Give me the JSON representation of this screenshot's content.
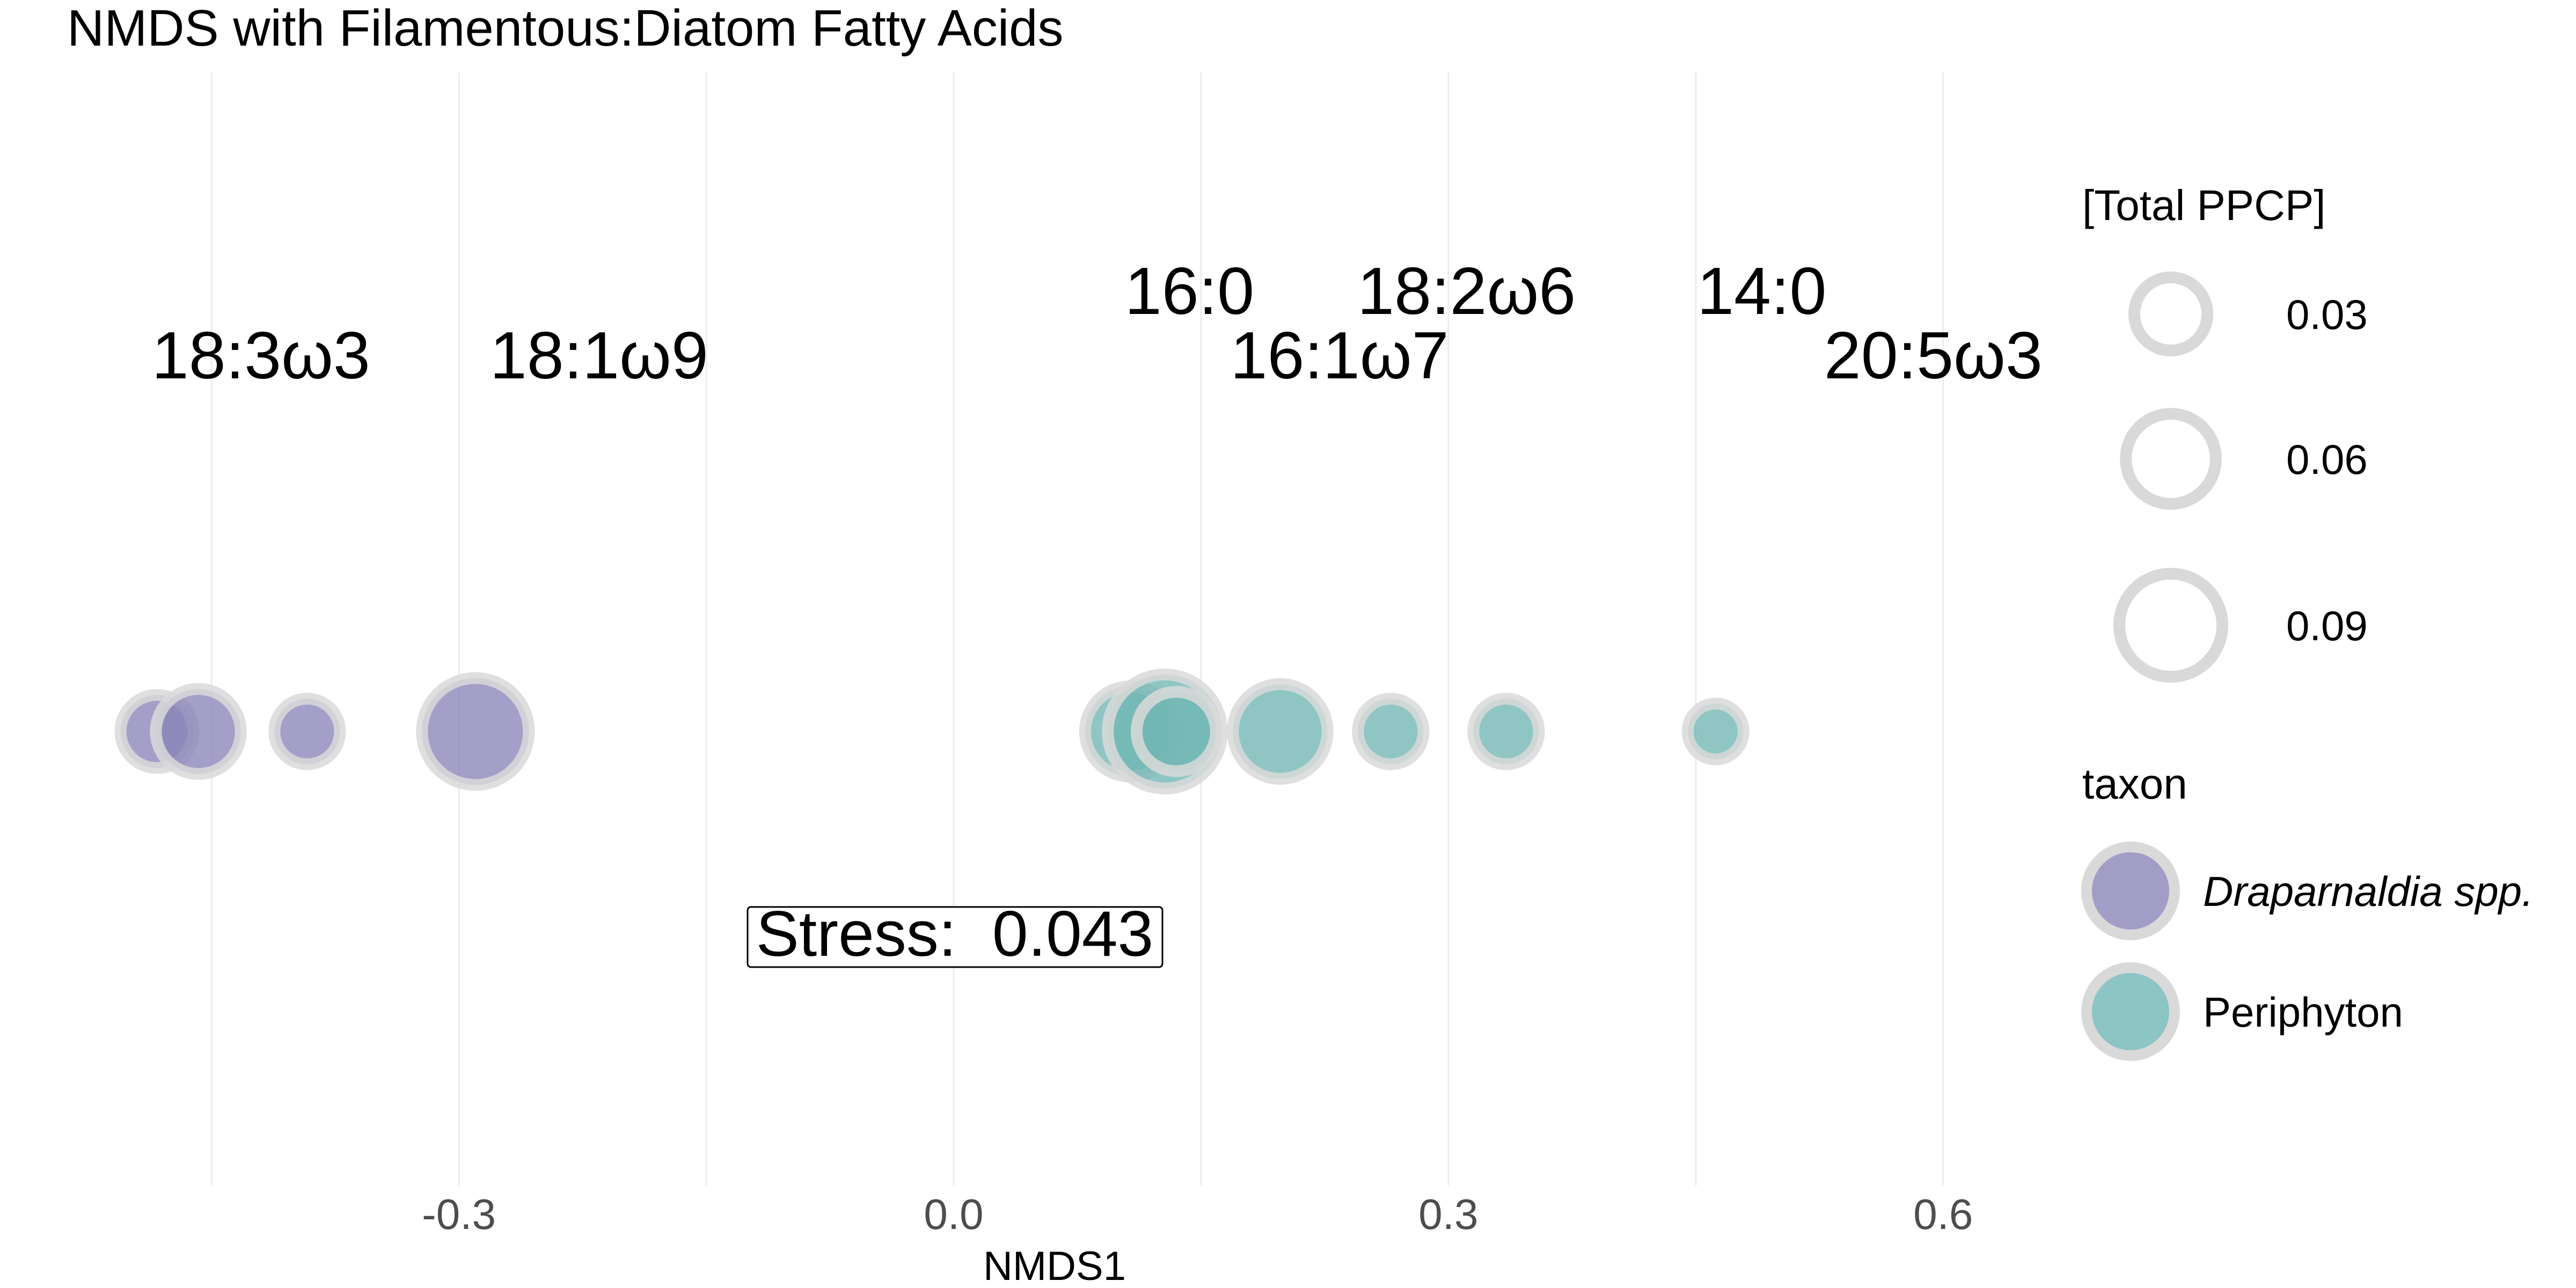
{
  "chart_data": {
    "type": "scatter",
    "title": "NMDS with Filamentous:Diatom Fatty Acids",
    "xlabel": "NMDS1",
    "ylabel": "",
    "xlim": [
      -0.56,
      0.77
    ],
    "x_ticks": [
      {
        "value": -0.3,
        "label": "-0.3"
      },
      {
        "value": 0.0,
        "label": "0.0"
      },
      {
        "value": 0.3,
        "label": "0.3"
      },
      {
        "value": 0.6,
        "label": "0.6"
      }
    ],
    "minor_gridlines": [
      -0.45,
      -0.15,
      0.15,
      0.45
    ],
    "grid": true,
    "stress_label": "Stress:  0.043",
    "fatty_acid_labels": [
      {
        "label": "18:3ω3",
        "x": -0.42,
        "row": "lower"
      },
      {
        "label": "18:1ω9",
        "x": -0.215,
        "row": "lower"
      },
      {
        "label": "16:0",
        "x": 0.143,
        "row": "upper"
      },
      {
        "label": "16:1ω7",
        "x": 0.234,
        "row": "lower"
      },
      {
        "label": "18:2ω6",
        "x": 0.311,
        "row": "upper"
      },
      {
        "label": "14:0",
        "x": 0.49,
        "row": "upper"
      },
      {
        "label": "20:5ω3",
        "x": 0.594,
        "row": "lower"
      }
    ],
    "series": [
      {
        "name": "Draparnaldia spp.",
        "color": "#8b84b8",
        "points": [
          {
            "x": -0.483,
            "size": 0.03
          },
          {
            "x": -0.458,
            "size": 0.05
          },
          {
            "x": -0.392,
            "size": 0.02
          },
          {
            "x": -0.29,
            "size": 0.1
          }
        ]
      },
      {
        "name": "Periphyton",
        "color": "#6fb6b4",
        "points": [
          {
            "x": 0.107,
            "size": 0.06
          },
          {
            "x": 0.128,
            "size": 0.12
          },
          {
            "x": 0.135,
            "size": 0.04
          },
          {
            "x": 0.198,
            "size": 0.07
          },
          {
            "x": 0.265,
            "size": 0.02
          },
          {
            "x": 0.335,
            "size": 0.02
          },
          {
            "x": 0.462,
            "size": 0.01
          }
        ]
      }
    ],
    "legend_size": {
      "title": "[Total PPCP]",
      "entries": [
        {
          "label": "0.03",
          "value": 0.03
        },
        {
          "label": "0.06",
          "value": 0.06
        },
        {
          "label": "0.09",
          "value": 0.09
        }
      ]
    },
    "legend_color": {
      "title": "taxon",
      "entries": [
        {
          "label": "Draparnaldia spp.",
          "italic": true
        },
        {
          "label": "Periphyton",
          "italic": false
        }
      ]
    },
    "colors": {
      "outline": "#d9d9d9",
      "grid": "#ececec",
      "text": "#000000",
      "tick_text": "#4d4d4d"
    }
  }
}
